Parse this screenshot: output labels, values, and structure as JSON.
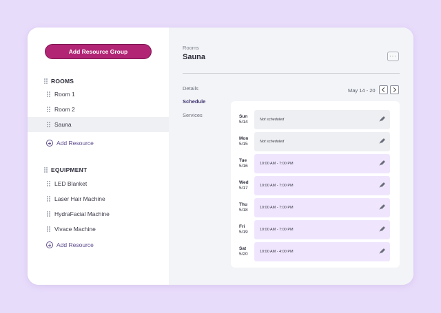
{
  "sidebar": {
    "add_group_label": "Add Resource Group",
    "groups": [
      {
        "title": "ROOMS",
        "items": [
          "Room 1",
          "Room 2",
          "Sauna"
        ],
        "selected": "Sauna",
        "add_label": "Add Resource"
      },
      {
        "title": "EQUIPMENT",
        "items": [
          "LED Blanket",
          "Laser Hair Machine",
          "HydraFacial Machine",
          "Vivace Machine"
        ],
        "add_label": "Add Resource"
      }
    ]
  },
  "main": {
    "breadcrumb": "Rooms",
    "title": "Sauna",
    "more_label": "···",
    "tabs": [
      "Details",
      "Schedule",
      "Services"
    ],
    "active_tab": "Schedule",
    "date_range": "May 14 - 20",
    "schedule": [
      {
        "day": "Sun",
        "date": "5/14",
        "slot": "Not scheduled",
        "scheduled": false
      },
      {
        "day": "Mon",
        "date": "5/15",
        "slot": "Not scheduled",
        "scheduled": false
      },
      {
        "day": "Tue",
        "date": "5/16",
        "slot": "10:00 AM - 7:00 PM",
        "scheduled": true
      },
      {
        "day": "Wed",
        "date": "5/17",
        "slot": "10:00 AM - 7:00 PM",
        "scheduled": true
      },
      {
        "day": "Thu",
        "date": "5/18",
        "slot": "10:00 AM - 7:00 PM",
        "scheduled": true
      },
      {
        "day": "Fri",
        "date": "5/19",
        "slot": "10:00 AM - 7:00 PM",
        "scheduled": true
      },
      {
        "day": "Sat",
        "date": "5/20",
        "slot": "10:00 AM - 4:00 PM",
        "scheduled": true
      }
    ]
  },
  "colors": {
    "background": "#e8dcfb",
    "accent": "#b22575",
    "link": "#5d4a8e",
    "scheduled_slot": "#efe6fd",
    "unscheduled_slot": "#eeeff2"
  }
}
